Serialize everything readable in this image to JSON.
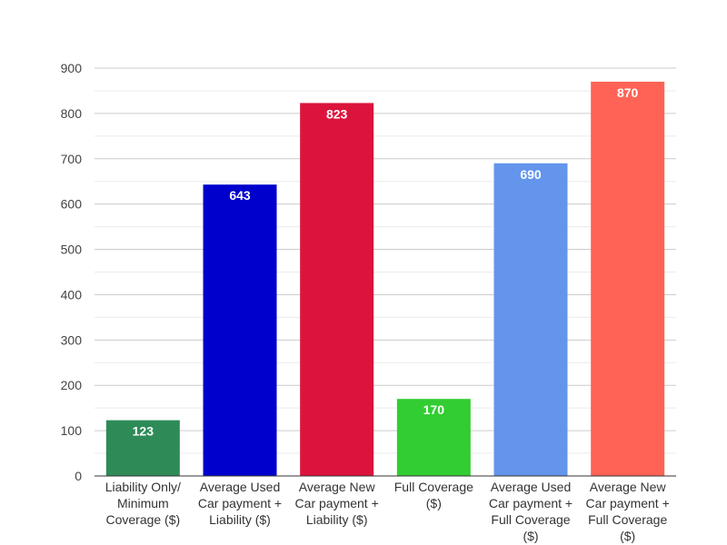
{
  "chart_data": {
    "type": "bar",
    "categories": [
      [
        "Liability Only/",
        "Minimum",
        "Coverage ($)"
      ],
      [
        "Average Used",
        "Car payment +",
        "Liability ($)"
      ],
      [
        "Average New",
        "Car payment +",
        "Liability ($)"
      ],
      [
        "Full Coverage",
        "($)"
      ],
      [
        "Average Used",
        "Car payment +",
        "Full Coverage",
        "($)"
      ],
      [
        "Average New",
        "Car payment +",
        "Full Coverage",
        "($)"
      ]
    ],
    "values": [
      123,
      643,
      823,
      170,
      690,
      870
    ],
    "colors": [
      "#2e8b57",
      "#0000cd",
      "#dc143c",
      "#32cd32",
      "#6495ed",
      "#ff6355"
    ],
    "ylim": [
      0,
      900
    ],
    "yticks": [
      "0",
      "100",
      "200",
      "300",
      "400",
      "500",
      "600",
      "700",
      "800",
      "900"
    ],
    "grid": true,
    "title": "",
    "xlabel": "",
    "ylabel": ""
  }
}
